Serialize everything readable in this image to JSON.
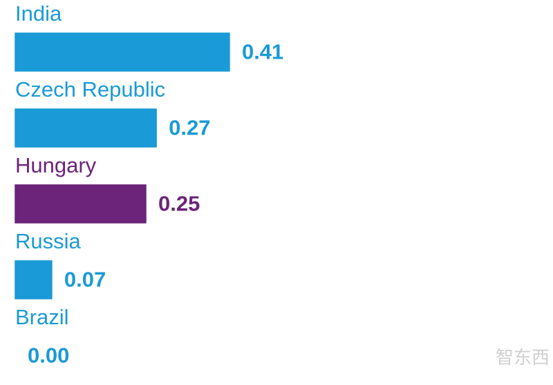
{
  "chart_data": {
    "type": "bar",
    "categories": [
      "India",
      "Czech Republic",
      "Hungary",
      "Russia",
      "Brazil"
    ],
    "values": [
      0.41,
      0.27,
      0.25,
      0.07,
      0
    ],
    "value_labels": [
      "0.41",
      "0.27",
      "0.25",
      "0.07",
      "0.00"
    ],
    "colors": [
      "#1a9ad6",
      "#1a9ad6",
      "#6b2479",
      "#1a9ad6",
      "#1a9ad6"
    ],
    "watermark": "智东西"
  }
}
